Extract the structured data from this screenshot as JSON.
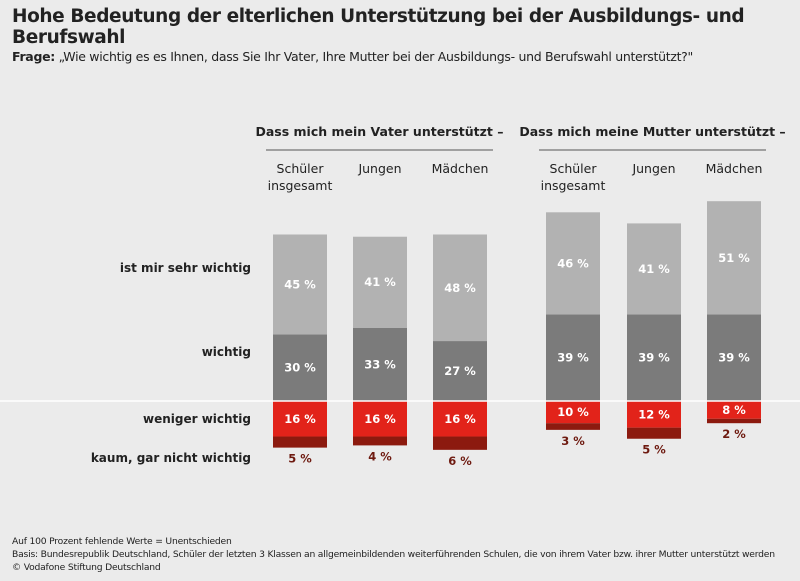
{
  "title": "Hohe Bedeutung der elterlichen Unterstützung bei der Ausbildungs- und Berufswahl",
  "question_label": "Frage:",
  "question": "„Wie wichtig es es Ihnen, dass Sie Ihr Vater, Ihre Mutter bei der Ausbildungs- und Berufswahl unterstützt?\"",
  "footnotes": [
    "Auf 100 Prozent fehlende Werte = Unentschieden",
    "Basis: Bundesrepublik Deutschland, Schüler der letzten 3 Klassen an allgemeinbildenden weiterführenden Schulen, die von ihrem Vater bzw. ihrer Mutter unterstützt werden",
    "© Vodafone Stiftung Deutschland"
  ],
  "chart_data": {
    "type": "bar",
    "stacked": true,
    "diverging": true,
    "groups": [
      {
        "title": "Dass mich mein Vater unterstützt –",
        "categories": [
          [
            "Schüler",
            "insgesamt"
          ],
          [
            "Jungen"
          ],
          [
            "Mädchen"
          ]
        ]
      },
      {
        "title": "Dass mich meine Mutter unterstützt –",
        "categories": [
          [
            "Schüler",
            "insgesamt"
          ],
          [
            "Jungen"
          ],
          [
            "Mädchen"
          ]
        ]
      }
    ],
    "unit": "%",
    "series": [
      {
        "name": "ist mir sehr wichtig",
        "color": "#7b7b7b",
        "direction": "up",
        "values": [
          30,
          33,
          27,
          39,
          39,
          39
        ]
      },
      {
        "name": "wichtig",
        "color": "#b2b2b2",
        "direction": "up",
        "values": [
          45,
          41,
          48,
          46,
          41,
          51
        ]
      },
      {
        "name": "weniger wichtig",
        "color": "#e2231a",
        "direction": "down",
        "values": [
          16,
          16,
          16,
          10,
          12,
          8
        ]
      },
      {
        "name": "kaum, gar nicht wichtig",
        "color": "#8c1a0f",
        "direction": "down",
        "values": [
          5,
          4,
          6,
          3,
          5,
          2
        ]
      }
    ]
  }
}
